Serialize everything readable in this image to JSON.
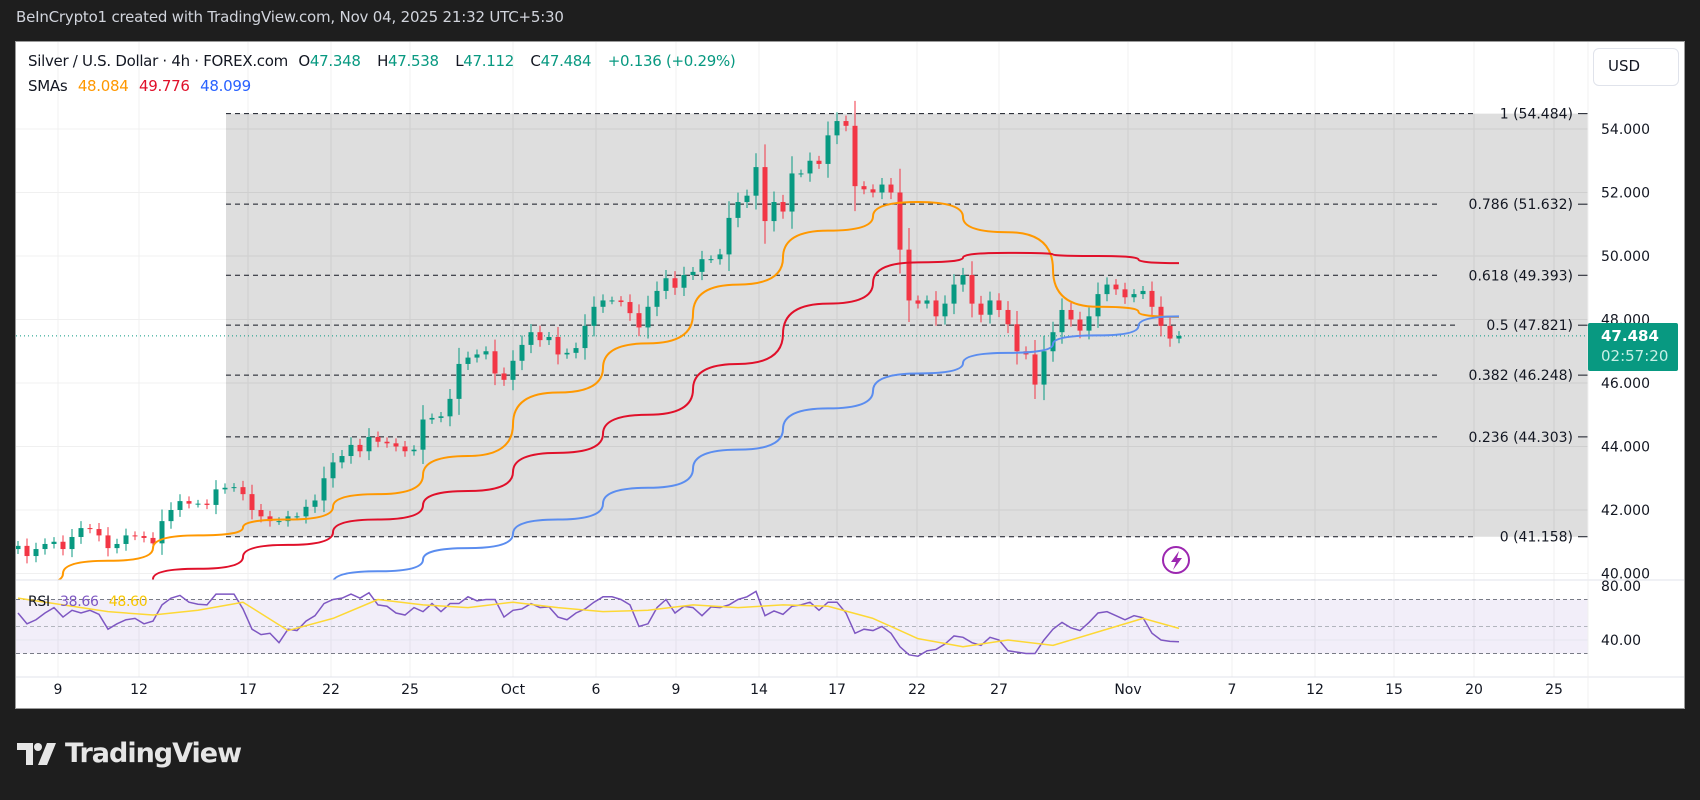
{
  "header": {
    "credit": "BeInCrypto1 created with TradingView.com, Nov 04, 2025 21:32 UTC+5:30"
  },
  "legend": {
    "symbol": "Silver / U.S. Dollar · 4h · FOREX.com",
    "o_label": "O",
    "o": "47.348",
    "h_label": "H",
    "h": "47.538",
    "l_label": "L",
    "l": "47.112",
    "c_label": "C",
    "c": "47.484",
    "change": "+0.136 (+0.29%)",
    "sma_label": "SMAs",
    "sma1": "48.084",
    "sma2": "49.776",
    "sma3": "48.099",
    "rsi_label": "RSI",
    "rsi": "38.66",
    "rsi_ma": "48.60"
  },
  "currency_button": "USD",
  "price_tag": {
    "price": "47.484",
    "countdown": "02:57:20"
  },
  "footer": {
    "brand": "TradingView"
  },
  "colors": {
    "up": "#089981",
    "down": "#f23645",
    "sma1": "#ff9800",
    "sma2": "#e0102a",
    "sma3": "#5b8def",
    "rsi": "#7e57c2",
    "rsi_ma": "#fdd835",
    "fib_zone": "#dcdcdc",
    "alert": "#9c27b0"
  },
  "icons": {
    "alert": "lightning-circle-icon",
    "logo": "tradingview-logo-icon"
  },
  "chart_data": {
    "type": "candlestick",
    "timeframe": "4h",
    "x_ticks": [
      "9",
      "12",
      "17",
      "22",
      "25",
      "Oct",
      "6",
      "9",
      "14",
      "17",
      "22",
      "27",
      "Nov",
      "7",
      "12",
      "15",
      "20",
      "25"
    ],
    "y_ticks": [
      "54.000",
      "52.000",
      "50.000",
      "48.000",
      "46.000",
      "44.000",
      "42.000",
      "40.000"
    ],
    "ylim": [
      40,
      54.5
    ],
    "grid": true,
    "closes": [
      40.87,
      40.55,
      40.77,
      40.93,
      41.0,
      40.77,
      41.15,
      41.43,
      41.4,
      41.2,
      40.8,
      40.93,
      41.2,
      41.18,
      41.12,
      40.95,
      41.65,
      42.0,
      42.28,
      42.2,
      42.2,
      42.16,
      42.65,
      42.7,
      42.72,
      42.5,
      42.0,
      41.8,
      41.65,
      41.65,
      41.8,
      41.8,
      42.1,
      42.3,
      43.0,
      43.5,
      43.7,
      44.05,
      43.85,
      44.3,
      44.15,
      44.1,
      44.0,
      43.85,
      43.9,
      44.85,
      44.9,
      44.95,
      45.5,
      46.6,
      46.8,
      46.9,
      47.0,
      46.3,
      46.1,
      46.7,
      47.2,
      47.6,
      47.35,
      47.45,
      46.9,
      46.95,
      47.1,
      47.8,
      48.4,
      48.6,
      48.6,
      48.55,
      48.2,
      47.75,
      48.4,
      48.9,
      49.3,
      49.0,
      49.4,
      49.5,
      49.9,
      49.9,
      50.05,
      51.2,
      51.7,
      51.9,
      52.8,
      51.1,
      51.7,
      51.4,
      52.6,
      52.6,
      53.0,
      52.9,
      53.8,
      54.25,
      54.1,
      52.2,
      52.1,
      52.0,
      52.25,
      52.0,
      50.2,
      48.6,
      48.5,
      48.6,
      48.1,
      48.5,
      49.1,
      49.4,
      48.5,
      48.15,
      48.6,
      48.3,
      47.85,
      47.0,
      46.9,
      45.95,
      47.0,
      47.6,
      48.3,
      48.0,
      47.65,
      48.1,
      48.8,
      49.1,
      48.95,
      48.7,
      48.8,
      48.9,
      48.4,
      47.8,
      47.4,
      47.484
    ],
    "sma_series": [
      {
        "name": "48.084",
        "values": [
          39.6,
          40.4,
          41.2,
          41.7,
          42.5,
          43.7,
          45.7,
          47.25,
          49.1,
          50.8,
          51.7,
          50.75,
          48.4,
          48.084
        ]
      },
      {
        "name": "49.776",
        "values": [
          38.3,
          39.5,
          40.15,
          40.9,
          41.7,
          42.6,
          43.8,
          45.0,
          46.6,
          48.5,
          49.8,
          50.1,
          50.0,
          49.776
        ]
      },
      {
        "name": "48.099",
        "values": [
          37.2,
          37.9,
          38.6,
          39.35,
          40.07,
          40.8,
          41.7,
          42.7,
          43.9,
          45.2,
          46.3,
          46.95,
          47.5,
          48.099
        ]
      }
    ],
    "fibonacci": [
      {
        "level": "1",
        "price": 54.484,
        "label": "1 (54.484)"
      },
      {
        "level": "0.786",
        "price": 51.632,
        "label": "0.786 (51.632)"
      },
      {
        "level": "0.618",
        "price": 49.393,
        "label": "0.618 (49.393)"
      },
      {
        "level": "0.5",
        "price": 47.821,
        "label": "0.5 (47.821)"
      },
      {
        "level": "0.382",
        "price": 46.248,
        "label": "0.382 (46.248)"
      },
      {
        "level": "0.236",
        "price": 44.303,
        "label": "0.236 (44.303)"
      },
      {
        "level": "0",
        "price": 41.158,
        "label": "0 (41.158)"
      }
    ],
    "last_price": 47.484,
    "rsi": {
      "y_ticks": [
        "80.00",
        "40.00"
      ],
      "bands": [
        70,
        50,
        30
      ],
      "values": [
        60,
        52,
        55,
        60,
        64,
        57,
        62,
        60,
        62,
        59,
        48,
        52,
        55,
        56,
        52,
        54,
        66,
        71,
        73,
        68,
        66.5,
        66,
        74,
        74,
        74,
        63,
        48,
        44,
        45,
        38,
        48,
        47,
        54,
        58,
        67,
        70,
        71,
        74,
        71,
        75,
        66,
        65,
        60,
        58.5,
        64,
        61,
        67,
        61,
        67,
        67,
        72,
        69,
        70,
        70,
        57,
        62,
        63,
        67,
        64,
        64.5,
        57,
        55,
        60,
        63,
        68,
        72,
        72,
        70,
        66,
        50,
        52,
        64,
        70,
        60,
        65,
        64,
        58,
        64.5,
        64,
        66,
        70,
        72,
        76,
        58,
        61.5,
        59,
        65,
        66,
        68,
        62,
        68,
        68,
        60,
        45,
        48,
        47,
        50,
        45,
        35,
        29,
        28,
        32,
        33,
        37,
        43,
        42,
        38,
        36,
        42,
        40,
        32,
        31,
        30,
        30,
        40,
        48,
        53,
        49,
        47,
        53,
        60,
        61,
        58,
        55,
        58,
        56.5,
        45,
        40,
        39,
        38.66
      ],
      "ma_values": [
        71,
        66,
        61,
        58.5,
        62,
        68,
        47,
        56,
        70,
        66,
        64,
        68,
        64,
        61,
        62,
        66,
        64,
        66,
        65,
        56,
        41,
        35,
        40,
        36,
        46,
        56,
        48.6
      ]
    }
  }
}
